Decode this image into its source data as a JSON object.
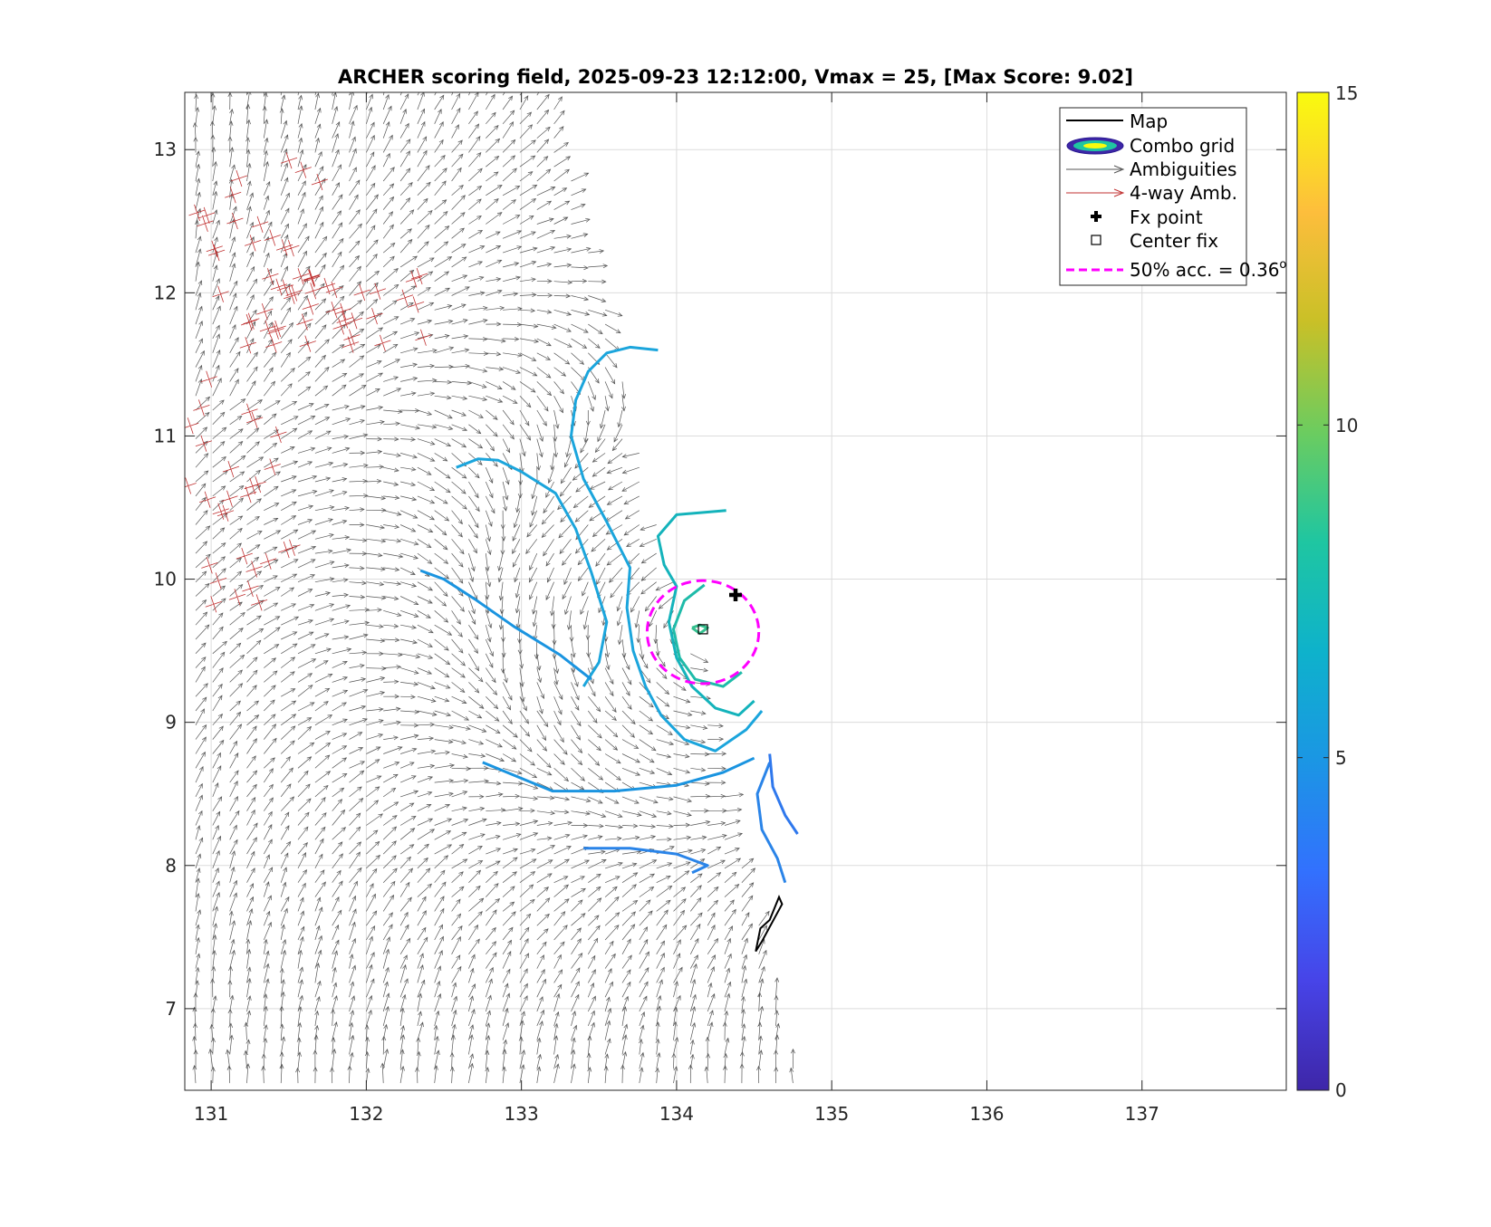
{
  "chart_data": {
    "type": "scatter",
    "title": "ARCHER scoring field, 2025-09-23 12:12:00, Vmax = 25, [Max Score: 9.02]",
    "xlabel": "",
    "ylabel": "",
    "xlim": [
      130.83,
      137.93
    ],
    "ylim": [
      6.43,
      13.4
    ],
    "x_ticks": [
      131,
      132,
      133,
      134,
      135,
      136,
      137
    ],
    "y_ticks": [
      7,
      8,
      9,
      10,
      11,
      12,
      13
    ],
    "x_tick_labels": [
      "131",
      "132",
      "133",
      "134",
      "135",
      "136",
      "137"
    ],
    "y_tick_labels": [
      "7",
      "8",
      "9",
      "10",
      "11",
      "12",
      "13"
    ],
    "grid": true,
    "colorbar": {
      "range": [
        0,
        15
      ],
      "ticks": [
        0,
        5,
        10,
        15
      ],
      "tick_labels": [
        "0",
        "5",
        "10",
        "15"
      ],
      "colors": [
        "#3e26a8",
        "#4744e8",
        "#3271fe",
        "#1b96e4",
        "#0eb2cb",
        "#1fc6a1",
        "#6ccc5f",
        "#c9c027",
        "#fdbe3c",
        "#f9fb0e"
      ]
    },
    "legend": {
      "position": "top-right",
      "entries": [
        "Map",
        "Combo grid",
        "Ambiguities",
        "4-way Amb.",
        "Fx point",
        "Center fix",
        "50% acc. = 0.36"
      ],
      "acc_superscript": "o"
    },
    "fx_point": {
      "x": 134.38,
      "y": 9.89
    },
    "center_fix": {
      "x": 134.17,
      "y": 9.65
    },
    "accuracy_circle": {
      "x": 134.17,
      "y": 9.63,
      "radius": 0.36,
      "color": "#ff00ff"
    },
    "map_island": [
      [
        134.55,
        7.47
      ],
      [
        134.63,
        7.63
      ],
      [
        134.68,
        7.73
      ],
      [
        134.66,
        7.78
      ],
      [
        134.6,
        7.62
      ],
      [
        134.54,
        7.56
      ],
      [
        134.51,
        7.4
      ],
      [
        134.55,
        7.47
      ]
    ],
    "swath_edge": [
      [
        131.0,
        13.37
      ],
      [
        133.2,
        13.37
      ],
      [
        134.8,
        6.43
      ]
    ],
    "contours": [
      {
        "level": 6.5,
        "color": "#1ba5dc",
        "points": [
          [
            133.4,
            9.25
          ],
          [
            133.5,
            9.42
          ],
          [
            133.55,
            9.7
          ],
          [
            133.45,
            10.05
          ],
          [
            133.35,
            10.35
          ],
          [
            133.22,
            10.6
          ],
          [
            133.0,
            10.75
          ],
          [
            132.85,
            10.83
          ],
          [
            132.72,
            10.84
          ],
          [
            132.58,
            10.78
          ]
        ]
      },
      {
        "level": 6.8,
        "color": "#1ba5dc",
        "points": [
          [
            133.88,
            11.6
          ],
          [
            133.7,
            11.62
          ],
          [
            133.55,
            11.58
          ],
          [
            133.43,
            11.45
          ],
          [
            133.35,
            11.25
          ],
          [
            133.32,
            11.0
          ],
          [
            133.4,
            10.7
          ],
          [
            133.55,
            10.4
          ],
          [
            133.7,
            10.08
          ],
          [
            133.68,
            9.8
          ],
          [
            133.72,
            9.5
          ],
          [
            133.8,
            9.25
          ],
          [
            133.9,
            9.05
          ],
          [
            134.05,
            8.88
          ],
          [
            134.25,
            8.8
          ],
          [
            134.45,
            8.95
          ],
          [
            134.55,
            9.08
          ]
        ]
      },
      {
        "level": 6.2,
        "color": "#1a94e0",
        "points": [
          [
            132.35,
            10.06
          ],
          [
            132.5,
            10.0
          ],
          [
            132.7,
            9.86
          ],
          [
            132.95,
            9.67
          ],
          [
            133.25,
            9.47
          ],
          [
            133.45,
            9.3
          ]
        ]
      },
      {
        "level": 6.2,
        "color": "#1a94e0",
        "points": [
          [
            132.75,
            8.72
          ],
          [
            133.2,
            8.52
          ],
          [
            133.6,
            8.52
          ],
          [
            134.0,
            8.56
          ],
          [
            134.3,
            8.65
          ],
          [
            134.5,
            8.75
          ]
        ]
      },
      {
        "level": 7.5,
        "color": "#14b3bb",
        "points": [
          [
            134.32,
            10.48
          ],
          [
            134.0,
            10.45
          ],
          [
            133.88,
            10.3
          ],
          [
            133.92,
            10.1
          ],
          [
            134.0,
            9.95
          ],
          [
            133.95,
            9.7
          ],
          [
            134.0,
            9.45
          ],
          [
            134.1,
            9.25
          ],
          [
            134.25,
            9.1
          ],
          [
            134.4,
            9.05
          ],
          [
            134.5,
            9.15
          ]
        ]
      },
      {
        "level": 8.2,
        "color": "#1fbba9",
        "points": [
          [
            134.18,
            9.96
          ],
          [
            134.05,
            9.85
          ],
          [
            133.98,
            9.65
          ],
          [
            134.02,
            9.45
          ],
          [
            134.12,
            9.3
          ],
          [
            134.3,
            9.25
          ],
          [
            134.42,
            9.35
          ]
        ]
      },
      {
        "level": 9.0,
        "color": "#35c08f",
        "points": [
          [
            134.1,
            9.66
          ],
          [
            134.15,
            9.68
          ],
          [
            134.2,
            9.66
          ],
          [
            134.15,
            9.62
          ],
          [
            134.1,
            9.66
          ]
        ]
      },
      {
        "level": 5.6,
        "color": "#2a84e8",
        "points": [
          [
            134.6,
            8.72
          ],
          [
            134.52,
            8.5
          ],
          [
            134.55,
            8.25
          ],
          [
            134.65,
            8.05
          ],
          [
            134.7,
            7.88
          ]
        ]
      },
      {
        "level": 5.4,
        "color": "#2f78ed",
        "points": [
          [
            134.6,
            8.78
          ],
          [
            134.62,
            8.55
          ],
          [
            134.7,
            8.35
          ],
          [
            134.78,
            8.22
          ]
        ]
      },
      {
        "level": 5.6,
        "color": "#2a84e8",
        "points": [
          [
            133.4,
            8.12
          ],
          [
            133.7,
            8.12
          ],
          [
            134.0,
            8.08
          ],
          [
            134.2,
            8.0
          ],
          [
            134.1,
            7.95
          ]
        ]
      }
    ]
  }
}
